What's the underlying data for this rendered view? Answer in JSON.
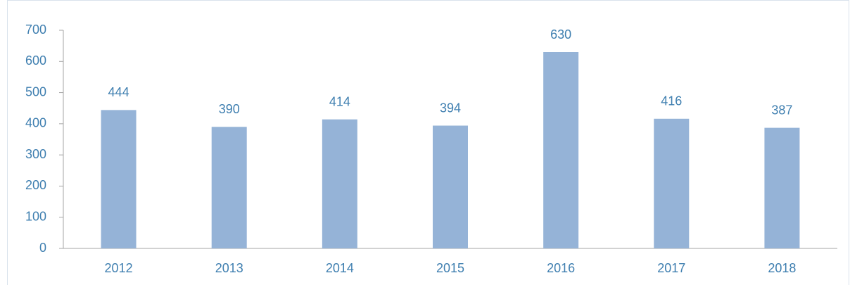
{
  "chart_data": {
    "type": "bar",
    "categories": [
      "2012",
      "2013",
      "2014",
      "2015",
      "2016",
      "2017",
      "2018"
    ],
    "values": [
      444,
      390,
      414,
      394,
      630,
      416,
      387
    ],
    "color": "#95b3d7",
    "ylim": [
      0,
      700
    ],
    "yticks": [
      0,
      100,
      200,
      300,
      400,
      500,
      600,
      700
    ],
    "grid": false
  }
}
